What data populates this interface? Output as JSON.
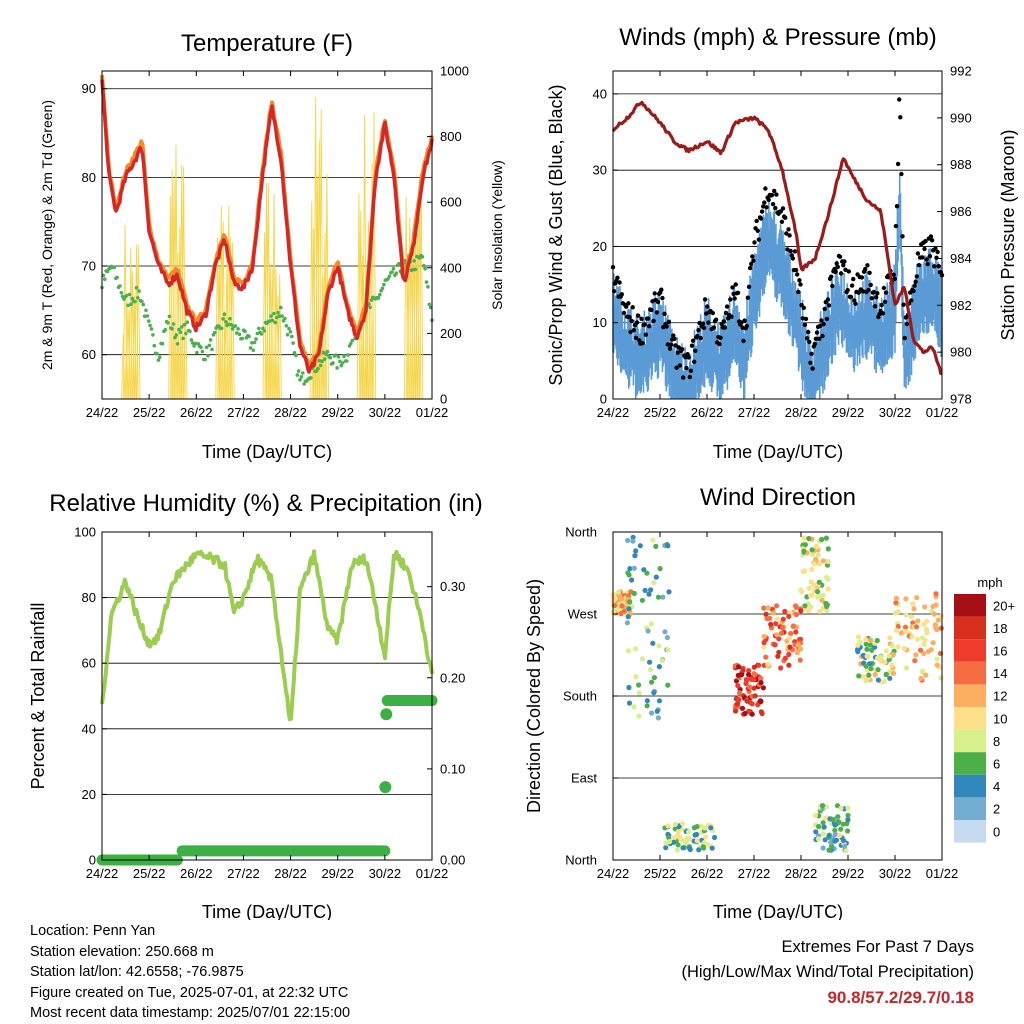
{
  "chart_data": [
    {
      "type": "line",
      "title": "Temperature (F)",
      "xlabel": "Time (Day/UTC)",
      "ylabel": "2m & 9m T (Red, Orange) & 2m Td (Green)",
      "ylabel_right": "Solar Insolation (Yellow)",
      "x_ticks": [
        "24/22",
        "25/22",
        "26/22",
        "27/22",
        "28/22",
        "29/22",
        "30/22",
        "01/22"
      ],
      "ylim": [
        55,
        92
      ],
      "y_ticks": [
        60,
        70,
        80,
        90
      ],
      "ylim_right": [
        0,
        1000
      ],
      "y_ticks_right": [
        0,
        200,
        400,
        600,
        800,
        1000
      ],
      "grid": "horizontal",
      "colors": {
        "t2m": "#d62728",
        "t9m": "#f28c28",
        "td": "#4caf50",
        "solar": "#f5d547"
      },
      "series": [
        {
          "key": "t2m",
          "x": [
            0,
            0.15,
            0.3,
            0.5,
            0.7,
            0.85,
            1,
            1.2,
            1.4,
            1.6,
            1.8,
            2,
            2.2,
            2.4,
            2.6,
            2.8,
            3,
            3.2,
            3.4,
            3.6,
            3.8,
            4,
            4.2,
            4.4,
            4.6,
            4.8,
            5,
            5.2,
            5.4,
            5.6,
            5.8,
            6,
            6.2,
            6.4,
            6.6,
            6.8,
            7
          ],
          "values": [
            91,
            80,
            76,
            80,
            82,
            83.5,
            74,
            70,
            68,
            69,
            65,
            63,
            64.5,
            70,
            73,
            68,
            67.5,
            70,
            80,
            88,
            82,
            70,
            61,
            58,
            60,
            67,
            70,
            65,
            62,
            65,
            80,
            86,
            80,
            68,
            72,
            80,
            84
          ]
        },
        {
          "key": "td",
          "x": [
            0,
            0.2,
            0.5,
            0.8,
            1,
            1.2,
            1.4,
            1.6,
            1.8,
            2,
            2.2,
            2.4,
            2.6,
            2.8,
            3,
            3.2,
            3.4,
            3.6,
            3.8,
            4,
            4.2,
            4.4,
            4.6,
            4.8,
            5,
            5.2,
            5.4,
            5.6,
            5.8,
            6,
            6.2,
            6.4,
            6.6,
            6.8,
            7
          ],
          "values": [
            68,
            70,
            66,
            67,
            63,
            60,
            64,
            62,
            63,
            61,
            60,
            62,
            64,
            63,
            62,
            61,
            63,
            64,
            65,
            62,
            57,
            58,
            59,
            60,
            59,
            60,
            63,
            65,
            66,
            68,
            69,
            70,
            70,
            71,
            64
          ]
        },
        {
          "key": "solar",
          "days": [
            0,
            1,
            2,
            3,
            4,
            5,
            6
          ],
          "peaks": [
            560,
            880,
            620,
            700,
            960,
            920,
            900
          ]
        }
      ]
    },
    {
      "type": "line",
      "title": "Winds (mph) & Pressure (mb)",
      "xlabel": "Time (Day/UTC)",
      "ylabel": "Sonic/Prop Wind & Gust (Blue, Black)",
      "ylabel_right": "Station Pressure (Maroon)",
      "x_ticks": [
        "24/22",
        "25/22",
        "26/22",
        "27/22",
        "28/22",
        "29/22",
        "30/22",
        "01/22"
      ],
      "ylim": [
        0,
        43
      ],
      "y_ticks": [
        0,
        10,
        20,
        30,
        40
      ],
      "ylim_right": [
        978,
        992
      ],
      "y_ticks_right": [
        978,
        980,
        982,
        984,
        986,
        988,
        990,
        992
      ],
      "grid": "horizontal",
      "colors": {
        "wind": "#5b9bd5",
        "gust": "#000000",
        "pressure": "#9b1b1b"
      },
      "series": [
        {
          "key": "wind",
          "x": [
            0,
            0.3,
            0.6,
            1,
            1.3,
            1.6,
            2,
            2.3,
            2.6,
            2.8,
            3,
            3.3,
            3.6,
            3.9,
            4.2,
            4.5,
            4.8,
            5.1,
            5.4,
            5.7,
            6,
            6.1,
            6.2,
            6.5,
            6.8,
            7
          ],
          "values": [
            12,
            8,
            6,
            10,
            4,
            2,
            9,
            5,
            11,
            6,
            15,
            22,
            18,
            12,
            3,
            8,
            14,
            10,
            12,
            9,
            13,
            28,
            6,
            14,
            16,
            12
          ]
        },
        {
          "key": "gust",
          "x": [
            0,
            0.3,
            0.6,
            1,
            1.3,
            1.6,
            2,
            2.3,
            2.6,
            2.8,
            3,
            3.3,
            3.6,
            3.9,
            4.2,
            4.5,
            4.8,
            5.1,
            5.4,
            5.7,
            6,
            6.1,
            6.2,
            6.5,
            6.8,
            7
          ],
          "values": [
            16,
            11,
            9,
            13,
            6,
            4,
            12,
            8,
            14,
            9,
            20,
            28,
            24,
            17,
            5,
            11,
            18,
            14,
            16,
            12,
            17,
            40,
            9,
            18,
            20,
            15
          ]
        },
        {
          "key": "pressure",
          "x": [
            0,
            0.3,
            0.6,
            1,
            1.3,
            1.6,
            2,
            2.3,
            2.6,
            3,
            3.3,
            3.6,
            3.9,
            4,
            4.3,
            4.6,
            4.9,
            5.1,
            5.4,
            5.7,
            6,
            6.2,
            6.4,
            6.6,
            6.8,
            7
          ],
          "values": [
            989.5,
            990,
            990.7,
            989.8,
            989,
            988.6,
            989,
            988.5,
            989.8,
            990,
            989.5,
            987.8,
            985,
            983.5,
            984,
            986,
            988.3,
            987.5,
            986.5,
            986,
            982,
            982.8,
            980.5,
            980,
            980.2,
            979
          ]
        }
      ]
    },
    {
      "type": "line",
      "title": "Relative Humidity (%) & Precipitation (in)",
      "xlabel": "Time (Day/UTC)",
      "ylabel": "Percent & Total Rainfall",
      "x_ticks": [
        "24/22",
        "25/22",
        "26/22",
        "27/22",
        "28/22",
        "29/22",
        "30/22",
        "01/22"
      ],
      "ylim": [
        0,
        100
      ],
      "y_ticks": [
        0,
        20,
        40,
        60,
        80,
        100
      ],
      "ylim_right": [
        0,
        0.36
      ],
      "y_ticks_right": [
        "0.00",
        "0.10",
        "0.20",
        "0.30"
      ],
      "grid": "horizontal",
      "colors": {
        "rh": "#9acd50",
        "precip": "#3cb043"
      },
      "series": [
        {
          "key": "rh",
          "x": [
            0,
            0.2,
            0.5,
            0.8,
            1,
            1.2,
            1.5,
            1.8,
            2,
            2.3,
            2.6,
            2.8,
            3,
            3.3,
            3.6,
            3.9,
            4,
            4.2,
            4.5,
            4.8,
            5,
            5.3,
            5.6,
            5.8,
            6,
            6.2,
            6.5,
            6.8,
            7
          ],
          "values": [
            47,
            75,
            85,
            72,
            66,
            68,
            85,
            90,
            93,
            92,
            90,
            75,
            80,
            92,
            85,
            52,
            40,
            82,
            93,
            70,
            67,
            90,
            92,
            78,
            62,
            94,
            88,
            72,
            56
          ]
        },
        {
          "key": "precip",
          "x": [
            0,
            1.6,
            1.7,
            6,
            6.01,
            6.03,
            6.05,
            7
          ],
          "values": [
            0,
            0,
            0.01,
            0.01,
            0.08,
            0.16,
            0.175,
            0.175
          ]
        }
      ]
    },
    {
      "type": "scatter",
      "title": "Wind Direction",
      "xlabel": "Time (Day/UTC)",
      "ylabel": "Direction (Colored By Speed)",
      "x_ticks": [
        "24/22",
        "25/22",
        "26/22",
        "27/22",
        "28/22",
        "29/22",
        "30/22",
        "01/22"
      ],
      "y_ticks": [
        "North",
        "East",
        "South",
        "West",
        "North"
      ],
      "legend_title": "mph",
      "legend_labels": [
        "20+",
        "18",
        "16",
        "14",
        "12",
        "10",
        "8",
        "6",
        "4",
        "2",
        "0"
      ],
      "legend_colors": [
        "#a50f15",
        "#d7301f",
        "#ef3b2c",
        "#f46d43",
        "#fdae61",
        "#fee08b",
        "#d9ef8b",
        "#4daf4a",
        "#3288bd",
        "#74add1",
        "#c6dbef"
      ],
      "legend_placement": "right",
      "grid": "horizontal",
      "clusters": [
        {
          "x": [
            0,
            0.4
          ],
          "dir": [
            270,
            295
          ],
          "speed": 11
        },
        {
          "x": [
            0.3,
            1.2
          ],
          "dir": [
            150,
            355
          ],
          "speed": 5
        },
        {
          "x": [
            1.1,
            2.2
          ],
          "dir": [
            10,
            40
          ],
          "speed": 7
        },
        {
          "x": [
            2.6,
            3.2
          ],
          "dir": [
            160,
            215
          ],
          "speed": 17
        },
        {
          "x": [
            3.2,
            4.0
          ],
          "dir": [
            210,
            280
          ],
          "speed": 14
        },
        {
          "x": [
            4.0,
            4.6
          ],
          "dir": [
            270,
            355
          ],
          "speed": 9
        },
        {
          "x": [
            4.3,
            5.0
          ],
          "dir": [
            10,
            60
          ],
          "speed": 6
        },
        {
          "x": [
            5.2,
            6.0
          ],
          "dir": [
            195,
            245
          ],
          "speed": 8
        },
        {
          "x": [
            6.0,
            7.0
          ],
          "dir": [
            195,
            295
          ],
          "speed": 11
        }
      ]
    }
  ],
  "footer": {
    "location": "Location: Penn Yan",
    "elevation": "Station elevation: 250.668 m",
    "latlon": "Station lat/lon: 42.6558; -76.9875",
    "created": "Figure created on Tue, 2025-07-01, at 22:32 UTC",
    "recent": "Most recent data timestamp: 2025/07/01 22:15:00",
    "extremes_title": "Extremes For Past 7 Days",
    "extremes_sub": "(High/Low/Max Wind/Total Precipitation)",
    "extremes_values": "90.8/57.2/29.7/0.18"
  }
}
